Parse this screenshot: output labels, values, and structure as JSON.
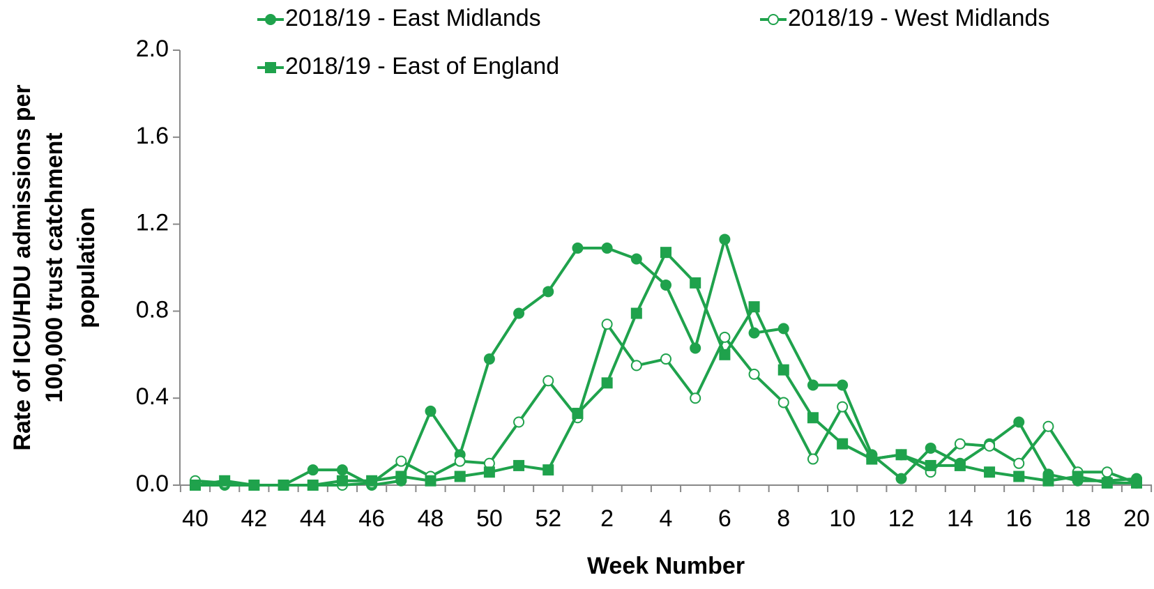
{
  "chart_data": {
    "type": "line",
    "xlabel": "Week Number",
    "ylabel": [
      "Rate of ICU/HDU admissions per",
      "100,000 trust catchment",
      "population"
    ],
    "categories": [
      "40",
      null,
      "42",
      null,
      "44",
      null,
      "46",
      null,
      "48",
      null,
      "50",
      null,
      "52",
      null,
      "2",
      null,
      "4",
      null,
      "6",
      null,
      "8",
      null,
      "10",
      null,
      "12",
      null,
      "14",
      null,
      "16",
      null,
      "18",
      null,
      "20"
    ],
    "series": [
      {
        "name": "2018/19 - East Midlands",
        "color": "#1fa24c",
        "marker": "circle",
        "values": [
          0.0,
          0.0,
          0.0,
          0.0,
          0.07,
          0.07,
          0.0,
          0.02,
          0.34,
          0.14,
          0.58,
          0.79,
          0.89,
          1.09,
          1.09,
          1.04,
          0.92,
          0.63,
          1.13,
          0.7,
          0.72,
          0.46,
          0.46,
          0.14,
          0.03,
          0.17,
          0.1,
          0.19,
          0.29,
          0.05,
          0.02,
          0.02,
          0.03
        ]
      },
      {
        "name": "2018/19 - West Midlands",
        "color": "#1fa24c",
        "marker": "open-circle",
        "values": [
          0.02,
          0.01,
          0.0,
          0.0,
          0.0,
          0.0,
          0.01,
          0.11,
          0.04,
          0.11,
          0.1,
          0.29,
          0.48,
          0.31,
          0.74,
          0.55,
          0.58,
          0.4,
          0.68,
          0.51,
          0.38,
          0.12,
          0.36,
          0.12,
          0.14,
          0.06,
          0.19,
          0.18,
          0.1,
          0.27,
          0.06,
          0.06,
          0.01
        ]
      },
      {
        "name": "2018/19 - East of England",
        "color": "#1fa24c",
        "marker": "square",
        "values": [
          0.0,
          0.02,
          0.0,
          0.0,
          0.0,
          0.02,
          0.02,
          0.04,
          0.02,
          0.04,
          0.06,
          0.09,
          0.07,
          0.33,
          0.47,
          0.79,
          1.07,
          0.93,
          0.6,
          0.82,
          0.53,
          0.31,
          0.19,
          0.12,
          0.14,
          0.09,
          0.09,
          0.06,
          0.04,
          0.02,
          0.04,
          0.01,
          0.01
        ]
      }
    ],
    "ylim": [
      0,
      2
    ],
    "yticks": [
      {
        "value": 0,
        "label": "0.0"
      },
      0.4,
      0.8,
      1.2,
      1.6,
      {
        "value": 2,
        "label": "2.0"
      }
    ],
    "grid": false,
    "legend": "top"
  }
}
